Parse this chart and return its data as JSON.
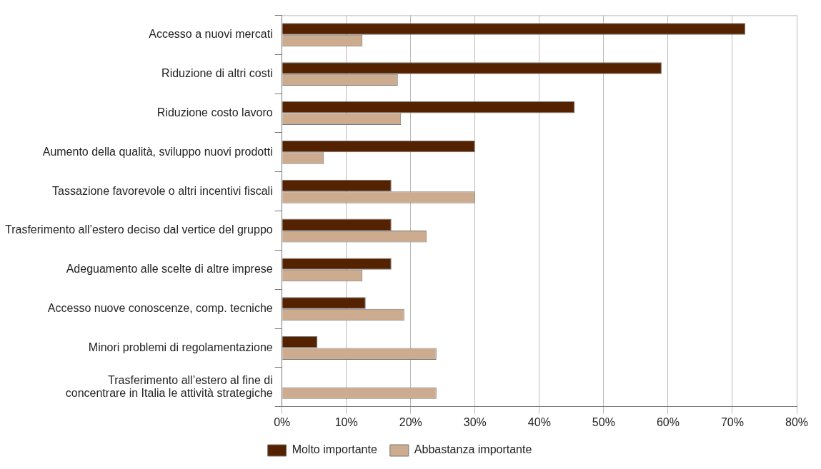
{
  "chart_data": {
    "type": "bar",
    "orientation": "horizontal",
    "categories": [
      "Accesso a nuovi mercati",
      "Riduzione di altri costi",
      "Riduzione costo lavoro",
      "Aumento della qualità, sviluppo nuovi prodotti",
      "Tassazione favorevole o altri incentivi fiscali",
      "Trasferimento all’estero deciso dal vertice del gruppo",
      "Adeguamento alle scelte di altre imprese",
      "Accesso nuove conoscenze, comp. tecniche",
      "Minori problemi di regolamentazione",
      "Trasferimento all’estero al fine di concentrare in Italia le attività strategiche"
    ],
    "series": [
      {
        "name": "Molto importante",
        "color": "#552200",
        "values": [
          72,
          59,
          45.5,
          30,
          17,
          17,
          17,
          13,
          5.5,
          null
        ]
      },
      {
        "name": "Abbastanza importante",
        "color": "#ccab8e",
        "values": [
          12.5,
          18,
          18.5,
          6.5,
          30,
          22.5,
          12.5,
          19,
          24,
          24
        ]
      }
    ],
    "xlim": [
      0,
      80
    ],
    "xticks": [
      {
        "value": 0,
        "label": "0%"
      },
      {
        "value": 10,
        "label": "10%"
      },
      {
        "value": 20,
        "label": "20%"
      },
      {
        "value": 30,
        "label": "30%"
      },
      {
        "value": 40,
        "label": "40%"
      },
      {
        "value": 50,
        "label": "50%"
      },
      {
        "value": 60,
        "label": "60%"
      },
      {
        "value": 70,
        "label": "70%"
      },
      {
        "value": 80,
        "label": "80%"
      }
    ],
    "grid": "x",
    "legend": "bottom"
  }
}
